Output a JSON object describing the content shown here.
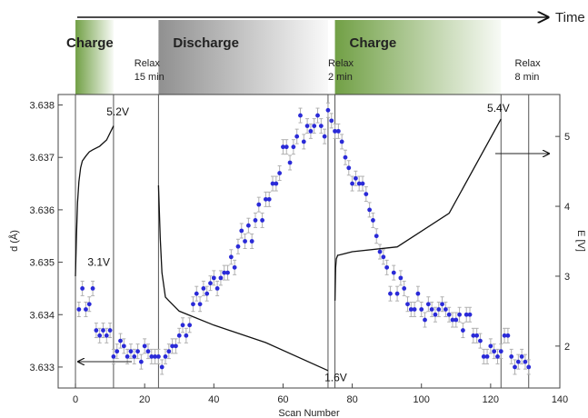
{
  "chart_data": {
    "type": "scatter",
    "time_label": "Time",
    "xlabel": "Scan Number",
    "ylabel_left": "d (Å)",
    "ylabel_right": "E [V]",
    "xlim": [
      -5,
      140
    ],
    "ylim_left": [
      3.6326,
      3.6382
    ],
    "ylim_right": [
      1.4,
      5.6
    ],
    "x_ticks": [
      0,
      20,
      40,
      60,
      80,
      100,
      120,
      140
    ],
    "y_ticks_left": [
      3.633,
      3.634,
      3.635,
      3.636,
      3.637,
      3.638
    ],
    "y_ticks_right": [
      2,
      3,
      4,
      5
    ],
    "phases": [
      {
        "label": "Charge",
        "start": 0,
        "end": 11,
        "color": "#6a9b3c"
      },
      {
        "label": "Discharge",
        "start": 24,
        "end": 73,
        "color": "#8c8c8c"
      },
      {
        "label": "Charge",
        "start": 75,
        "end": 123,
        "color": "#6a9b3c"
      }
    ],
    "relax_labels": [
      {
        "line1": "Relax",
        "line2": "15 min",
        "x": 17
      },
      {
        "line1": "Relax",
        "line2": "2 min",
        "x": 73
      },
      {
        "line1": "Relax",
        "line2": "8 min",
        "x": 127
      }
    ],
    "vertical_lines": [
      0,
      11,
      24,
      73,
      75,
      123,
      131
    ],
    "voltage_annotations": [
      {
        "text": "5.2V",
        "x": 9,
        "y": 5.3
      },
      {
        "text": "3.1V",
        "x": 3.5,
        "y": 3.15
      },
      {
        "text": "1.6V",
        "x": 72,
        "y": 1.5
      },
      {
        "text": "5.4V",
        "x": 119,
        "y": 5.35
      }
    ],
    "series": [
      {
        "kind": "d-spacing",
        "axis": "left",
        "color": "#2a2ad8",
        "x": [
          1,
          2,
          3,
          4,
          5,
          6,
          7,
          8,
          9,
          10,
          11,
          12,
          13,
          14,
          15,
          16,
          17,
          18,
          19,
          20,
          21,
          22,
          23,
          24,
          25,
          26,
          27,
          28,
          29,
          30,
          31,
          32,
          33,
          34,
          35,
          36,
          37,
          38,
          39,
          40,
          41,
          42,
          43,
          44,
          45,
          46,
          47,
          48,
          49,
          50,
          51,
          52,
          53,
          54,
          55,
          56,
          57,
          58,
          59,
          60,
          61,
          62,
          63,
          64,
          65,
          66,
          67,
          68,
          69,
          70,
          71,
          72,
          73,
          74,
          75,
          76,
          77,
          78,
          79,
          80,
          81,
          82,
          83,
          84,
          85,
          86,
          87,
          88,
          89,
          90,
          91,
          92,
          93,
          94,
          95,
          96,
          97,
          98,
          99,
          100,
          101,
          102,
          103,
          104,
          105,
          106,
          107,
          108,
          109,
          110,
          111,
          112,
          113,
          114,
          115,
          116,
          117,
          118,
          119,
          120,
          121,
          122,
          123,
          124,
          125,
          126,
          127,
          128,
          129,
          130,
          131
        ],
        "y": [
          3.6341,
          3.6345,
          3.6341,
          3.6342,
          3.6345,
          3.6337,
          3.6336,
          3.6337,
          3.6336,
          3.6337,
          3.6332,
          3.6333,
          3.6335,
          3.6334,
          3.6332,
          3.6333,
          3.6332,
          3.6333,
          3.6331,
          3.6334,
          3.6333,
          3.6332,
          3.6332,
          3.6332,
          3.633,
          3.6332,
          3.6333,
          3.6334,
          3.6334,
          3.6336,
          3.6338,
          3.6336,
          3.6338,
          3.6342,
          3.6344,
          3.6342,
          3.6345,
          3.6344,
          3.6346,
          3.6347,
          3.6345,
          3.6347,
          3.6348,
          3.6348,
          3.6351,
          3.6349,
          3.6353,
          3.6356,
          3.6354,
          3.6357,
          3.6354,
          3.6358,
          3.6361,
          3.6358,
          3.6362,
          3.6362,
          3.6365,
          3.6365,
          3.6367,
          3.6372,
          3.6372,
          3.6369,
          3.6372,
          3.6374,
          3.6378,
          3.6373,
          3.6376,
          3.6375,
          3.6376,
          3.6378,
          3.6376,
          3.6374,
          3.6379,
          3.6377,
          3.6375,
          3.6375,
          3.6373,
          3.637,
          3.6368,
          3.6365,
          3.6366,
          3.6365,
          3.6365,
          3.6363,
          3.636,
          3.6358,
          3.6355,
          3.6352,
          3.6351,
          3.6349,
          3.6344,
          3.6348,
          3.6344,
          3.6347,
          3.6345,
          3.6342,
          3.6341,
          3.6341,
          3.6344,
          3.6341,
          3.6339,
          3.6342,
          3.6341,
          3.634,
          3.6341,
          3.6342,
          3.6341,
          3.634,
          3.6339,
          3.6339,
          3.634,
          3.6337,
          3.634,
          3.634,
          3.6336,
          3.6336,
          3.6335,
          3.6332,
          3.6332,
          3.6334,
          3.6333,
          3.6332,
          3.6333,
          3.6336,
          3.6336,
          3.6332,
          3.633,
          3.6331,
          3.6332,
          3.6331,
          3.633
        ]
      },
      {
        "kind": "potential",
        "axis": "right",
        "color": "#111111",
        "segments": [
          {
            "x": [
              0,
              0.3,
              0.6,
              1,
              1.5,
              2,
              3,
              4,
              5,
              7,
              9,
              11
            ],
            "y": [
              3.0,
              3.6,
              4.05,
              4.35,
              4.55,
              4.65,
              4.72,
              4.78,
              4.81,
              4.86,
              4.95,
              5.15
            ]
          },
          {
            "x": [
              24,
              24.5,
              25,
              26,
              27,
              30,
              40,
              55,
              73
            ],
            "y": [
              4.3,
              3.55,
              3.05,
              2.7,
              2.65,
              2.5,
              2.3,
              2.05,
              1.65
            ]
          },
          {
            "x": [
              75,
              75.2,
              75.4,
              75.8,
              76,
              80,
              93,
              108,
              123
            ],
            "y": [
              2.65,
              3.12,
              3.25,
              3.3,
              3.3,
              3.35,
              3.42,
              3.9,
              5.25
            ]
          }
        ]
      }
    ]
  }
}
